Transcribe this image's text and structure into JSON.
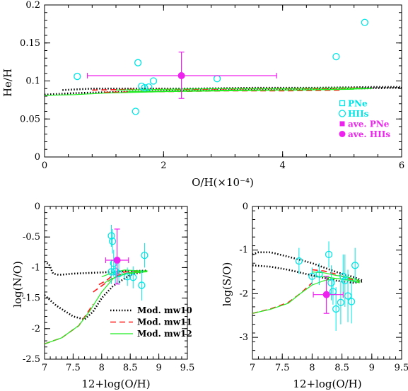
{
  "chart_data": [
    {
      "id": "top",
      "type": "scatter",
      "xlabel": "O/H(×10⁻⁴)",
      "ylabel": "He/H",
      "xlim": [
        0,
        6
      ],
      "ylim": [
        0,
        0.2
      ],
      "xticks": [
        "0",
        "2",
        "4",
        "6"
      ],
      "yticks": [
        "0",
        "0.05",
        "0.1",
        "0.15",
        "0.2"
      ],
      "legend_position": "bottom-right",
      "legend": [
        "PNe",
        "HIIs",
        "ave. PNe",
        "ave. HIIs"
      ],
      "series": [
        {
          "name": "HIIs",
          "marker": "open-circle",
          "color": "#00e5e5",
          "x": [
            0.55,
            1.57,
            1.63,
            1.68,
            1.75,
            1.83,
            1.53,
            2.9,
            4.9,
            5.38
          ],
          "y": [
            0.106,
            0.124,
            0.093,
            0.091,
            0.092,
            0.1,
            0.06,
            0.103,
            0.132,
            0.177
          ]
        },
        {
          "name": "ave. HIIs",
          "marker": "filled-circle",
          "color": "#ee22ee",
          "x": [
            2.3
          ],
          "y": [
            0.107
          ],
          "xerr": [
            [
              0.72,
              3.9
            ]
          ],
          "yerr": [
            [
              0.077,
              0.138
            ]
          ]
        }
      ],
      "models": [
        {
          "name": "Mod. mw10",
          "color": "#000000",
          "dash": "dot",
          "x": [
            0,
            0.5,
            1,
            2,
            3,
            4,
            5,
            6
          ],
          "y": [
            0.082,
            0.084,
            0.085,
            0.087,
            0.088,
            0.089,
            0.09,
            0.091
          ]
        },
        {
          "name": "Mod. mw10",
          "color": "#000000",
          "dash": "dot",
          "x": [
            0.3,
            0.8,
            1.5,
            2.5,
            3.5,
            4.5,
            5.5,
            6
          ],
          "y": [
            0.088,
            0.09,
            0.09,
            0.09,
            0.091,
            0.091,
            0.092,
            0.092
          ]
        },
        {
          "name": "Mod. mw11",
          "color": "#ff1a1a",
          "dash": "dash",
          "x": [
            0.8,
            1.5,
            2.5,
            3.5,
            4.5,
            5.3
          ],
          "y": [
            0.088,
            0.089,
            0.089,
            0.09,
            0.09,
            0.091
          ]
        },
        {
          "name": "Mod. mw11",
          "color": "#ff1a1a",
          "dash": "dash",
          "x": [
            1.0,
            2.0,
            3.0,
            4.0,
            5.0
          ],
          "y": [
            0.085,
            0.086,
            0.087,
            0.087,
            0.088
          ]
        },
        {
          "name": "Mod. mw12",
          "color": "#22ee22",
          "dash": "solid",
          "x": [
            0,
            0.5,
            1.0,
            1.5,
            2.0,
            3.0,
            4.0,
            5.0,
            5.5
          ],
          "y": [
            0.081,
            0.082,
            0.084,
            0.085,
            0.086,
            0.087,
            0.088,
            0.089,
            0.09
          ]
        },
        {
          "name": "Mod. mw12",
          "color": "#22ee22",
          "dash": "solid",
          "x": [
            1.2,
            2.0,
            3.0,
            4.0,
            5.0,
            5.5
          ],
          "y": [
            0.088,
            0.089,
            0.09,
            0.09,
            0.091,
            0.09
          ]
        },
        {
          "name": "Mod. mw12",
          "color": "#22ee22",
          "dash": "solid",
          "x": [
            1.4,
            2.2,
            3.2,
            4.2,
            5.2
          ],
          "y": [
            0.086,
            0.087,
            0.088,
            0.088,
            0.089
          ]
        }
      ]
    },
    {
      "id": "bl",
      "type": "scatter",
      "xlabel": "12+log(O/H)",
      "ylabel": "log(N/O)",
      "xlim": [
        7,
        9.5
      ],
      "ylim": [
        -2.5,
        0
      ],
      "xticks": [
        "7",
        "7.5",
        "8",
        "8.5",
        "9",
        "9.5"
      ],
      "yticks": [
        "-2.5",
        "-2",
        "-1.5",
        "-1",
        "-0.5",
        "0"
      ],
      "legend_position": "bottom-right",
      "legend": [
        "Mod. mw10",
        "Mod. mw11",
        "Mod. mw12"
      ],
      "series": [
        {
          "name": "HIIs",
          "marker": "open-circle",
          "color": "#00e5e5",
          "x": [
            8.17,
            8.19,
            8.21,
            8.24,
            8.17,
            8.3,
            8.45,
            8.55,
            8.7,
            8.75
          ],
          "y": [
            -0.48,
            -0.57,
            -0.93,
            -1.06,
            -1.07,
            -1.1,
            -1.15,
            -1.16,
            -1.29,
            -0.8
          ],
          "yerr_half": [
            0.18,
            0.2,
            0.22,
            0.2,
            0.2,
            0.18,
            0.15,
            0.18,
            0.25,
            0.2
          ]
        },
        {
          "name": "ave. HIIs",
          "marker": "filled-circle",
          "color": "#ee22ee",
          "x": [
            8.27
          ],
          "y": [
            -0.88
          ],
          "xerr": [
            [
              8.07,
              8.47
            ]
          ],
          "yerr": [
            [
              -1.27,
              -0.37
            ]
          ]
        }
      ],
      "models": [
        {
          "name": "Mod. mw10",
          "color": "#000000",
          "dash": "dot",
          "x": [
            7.0,
            7.08,
            7.15,
            7.25,
            7.5,
            8.0,
            8.4,
            8.8
          ],
          "y": [
            -0.9,
            -0.95,
            -1.1,
            -1.12,
            -1.1,
            -1.08,
            -1.06,
            -1.05
          ]
        },
        {
          "name": "Mod. mw10",
          "color": "#000000",
          "dash": "dot",
          "x": [
            7.0,
            7.2,
            7.5,
            7.7,
            7.85,
            8.0,
            8.2,
            8.5,
            8.8
          ],
          "y": [
            -1.45,
            -1.62,
            -1.8,
            -1.85,
            -1.72,
            -1.5,
            -1.3,
            -1.12,
            -1.05
          ]
        },
        {
          "name": "Mod. mw11",
          "color": "#ff1a1a",
          "dash": "dash",
          "x": [
            7.95,
            8.1,
            8.2,
            8.35,
            8.5,
            8.7
          ],
          "y": [
            -1.28,
            -1.2,
            -1.12,
            -1.08,
            -1.06,
            -1.05
          ]
        },
        {
          "name": "Mod. mw11",
          "color": "#ff1a1a",
          "dash": "dash",
          "x": [
            7.85,
            8.0,
            8.15,
            8.3,
            8.5,
            8.7
          ],
          "y": [
            -1.4,
            -1.3,
            -1.2,
            -1.12,
            -1.08,
            -1.06
          ]
        },
        {
          "name": "Mod. mw11",
          "color": "#ff1a1a",
          "dash": "dash",
          "x": [
            7.0,
            7.3,
            7.6,
            7.85
          ],
          "y": [
            -2.25,
            -2.15,
            -1.95,
            -1.6
          ]
        },
        {
          "name": "Mod. mw12",
          "color": "#22ee22",
          "dash": "solid",
          "x": [
            7.0,
            7.3,
            7.6,
            7.8,
            8.0,
            8.2,
            8.4,
            8.6,
            8.8
          ],
          "y": [
            -2.25,
            -2.15,
            -1.95,
            -1.7,
            -1.4,
            -1.18,
            -1.1,
            -1.07,
            -1.05
          ]
        },
        {
          "name": "Mod. mw12",
          "color": "#22ee22",
          "dash": "solid",
          "x": [
            8.0,
            8.2,
            8.4,
            8.6,
            8.8
          ],
          "y": [
            -1.15,
            -1.08,
            -1.04,
            -1.05,
            -1.06
          ]
        },
        {
          "name": "Mod. mw12",
          "color": "#22ee22",
          "dash": "solid",
          "x": [
            8.05,
            8.25,
            8.45,
            8.65,
            8.8
          ],
          "y": [
            -1.25,
            -1.15,
            -1.1,
            -1.08,
            -1.07
          ]
        }
      ]
    },
    {
      "id": "br",
      "type": "scatter",
      "xlabel": "12+log(O/H)",
      "ylabel": "log(S/O)",
      "xlim": [
        7,
        9.5
      ],
      "ylim": [
        -3.5,
        0
      ],
      "xticks": [
        "7",
        "7.5",
        "8",
        "8.5",
        "9",
        "9.5"
      ],
      "yticks": [
        "-3",
        "-2",
        "-1",
        "0"
      ],
      "series": [
        {
          "name": "HIIs",
          "marker": "open-circle",
          "color": "#00e5e5",
          "x": [
            7.78,
            8.0,
            8.12,
            8.28,
            8.32,
            8.4,
            8.48,
            8.52,
            8.55,
            8.6,
            8.66,
            8.72,
            8.35
          ],
          "y": [
            -1.25,
            -1.6,
            -1.55,
            -1.1,
            -1.75,
            -2.35,
            -2.2,
            -1.6,
            -1.7,
            -2.05,
            -2.18,
            -1.35,
            -1.95
          ],
          "yerr_half": [
            0.3,
            0.2,
            0.25,
            0.3,
            0.4,
            0.5,
            0.5,
            0.5,
            0.6,
            0.6,
            0.5,
            0.4,
            0.3
          ]
        },
        {
          "name": "ave. HIIs",
          "marker": "filled-circle",
          "color": "#ee22ee",
          "x": [
            8.24
          ],
          "y": [
            -2.02
          ],
          "xerr": [
            [
              8.02,
              8.52
            ]
          ],
          "yerr": [
            [
              -2.45,
              -1.6
            ]
          ]
        }
      ],
      "models": [
        {
          "name": "Mod. mw10",
          "color": "#000000",
          "dash": "dot",
          "x": [
            7.0,
            7.1,
            7.3,
            7.6,
            8.0,
            8.4,
            8.7,
            8.85
          ],
          "y": [
            -1.1,
            -1.05,
            -1.05,
            -1.15,
            -1.3,
            -1.5,
            -1.62,
            -1.7
          ]
        },
        {
          "name": "Mod. mw10",
          "color": "#000000",
          "dash": "dot",
          "x": [
            7.0,
            7.3,
            7.6,
            8.0,
            8.4,
            8.7,
            8.85
          ],
          "y": [
            -1.35,
            -1.38,
            -1.45,
            -1.58,
            -1.7,
            -1.75,
            -1.72
          ]
        },
        {
          "name": "Mod. mw11",
          "color": "#ff1a1a",
          "dash": "dash",
          "x": [
            8.0,
            8.2,
            8.4,
            8.6,
            8.8
          ],
          "y": [
            -1.45,
            -1.48,
            -1.55,
            -1.65,
            -1.72
          ]
        },
        {
          "name": "Mod. mw11",
          "color": "#ff1a1a",
          "dash": "dash",
          "x": [
            7.0,
            7.3,
            7.6,
            7.8,
            8.0
          ],
          "y": [
            -2.45,
            -2.35,
            -2.2,
            -2.0,
            -1.75
          ]
        },
        {
          "name": "Mod. mw12",
          "color": "#22ee22",
          "dash": "solid",
          "x": [
            7.0,
            7.3,
            7.6,
            7.8,
            8.0,
            8.2,
            8.4,
            8.6,
            8.8
          ],
          "y": [
            -2.45,
            -2.36,
            -2.22,
            -2.0,
            -1.8,
            -1.7,
            -1.65,
            -1.68,
            -1.72
          ]
        },
        {
          "name": "Mod. mw12",
          "color": "#22ee22",
          "dash": "solid",
          "x": [
            8.0,
            8.2,
            8.4,
            8.6,
            8.8
          ],
          "y": [
            -1.5,
            -1.52,
            -1.58,
            -1.62,
            -1.7
          ]
        },
        {
          "name": "Mod. mw12",
          "color": "#22ee22",
          "dash": "solid",
          "x": [
            8.05,
            8.25,
            8.45,
            8.65,
            8.8
          ],
          "y": [
            -1.6,
            -1.62,
            -1.66,
            -1.7,
            -1.75
          ]
        }
      ]
    }
  ]
}
